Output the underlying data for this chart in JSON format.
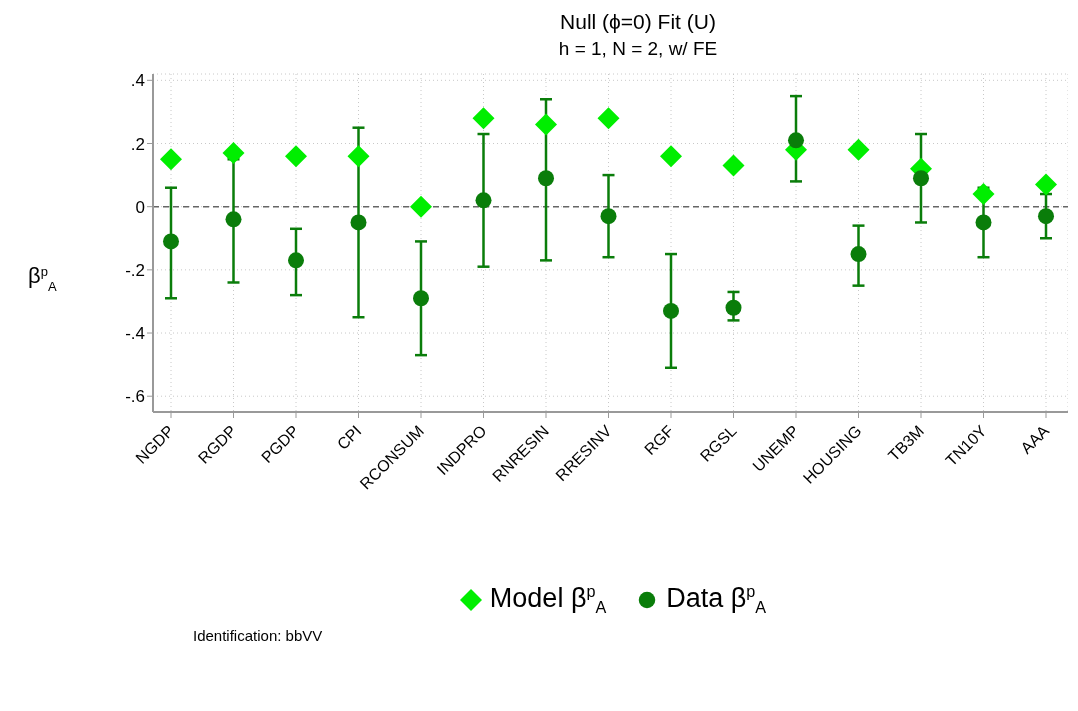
{
  "chart_data": {
    "type": "scatter",
    "title": "Null (ϕ=0) Fit (U)",
    "subtitle": "h = 1, N = 2, w/ FE",
    "ylabel": "β$^{p}$$_{A}$",
    "categories": [
      "NGDP",
      "RGDP",
      "PGDP",
      "CPI",
      "RCONSUM",
      "INDPRO",
      "RNRESIN",
      "RRESINV",
      "RGF",
      "RGSL",
      "UNEMP",
      "HOUSING",
      "TB3M",
      "TN10Y",
      "AAA"
    ],
    "series": [
      {
        "name": "Model β$^{p}$$_{A}$",
        "color": "#00ee00",
        "marker": "diamond",
        "values": [
          0.15,
          0.17,
          0.16,
          0.16,
          0.0,
          0.28,
          0.26,
          0.28,
          0.16,
          0.13,
          0.18,
          0.18,
          0.12,
          0.04,
          0.07
        ]
      },
      {
        "name": "Data β$^{p}$$_{A}$",
        "color": "#0a7d0a",
        "marker": "circle",
        "values": [
          -0.11,
          -0.04,
          -0.17,
          -0.05,
          -0.29,
          0.02,
          0.09,
          -0.03,
          -0.33,
          -0.32,
          0.21,
          -0.15,
          0.09,
          -0.05,
          -0.03
        ],
        "errors": [
          [
            -0.29,
            0.06
          ],
          [
            -0.24,
            0.15
          ],
          [
            -0.28,
            -0.07
          ],
          [
            -0.35,
            0.25
          ],
          [
            -0.47,
            -0.11
          ],
          [
            -0.19,
            0.23
          ],
          [
            -0.17,
            0.34
          ],
          [
            -0.16,
            0.1
          ],
          [
            -0.51,
            -0.15
          ],
          [
            -0.36,
            -0.27
          ],
          [
            0.08,
            0.35
          ],
          [
            -0.25,
            -0.06
          ],
          [
            -0.05,
            0.23
          ],
          [
            -0.16,
            0.06
          ],
          [
            -0.1,
            0.04
          ]
        ]
      }
    ],
    "ylim": [
      -0.65,
      0.42
    ],
    "yticks": [
      {
        "value": -0.6,
        "label": "-.6"
      },
      {
        "value": -0.4,
        "label": "-.4"
      },
      {
        "value": -0.2,
        "label": "-.2"
      },
      0,
      {
        "value": 0.2,
        "label": ".2"
      },
      {
        "value": 0.4,
        "label": ".4"
      }
    ],
    "ref_lines": [
      {
        "axis": "y",
        "value": 0,
        "color": "#666666",
        "line_style": "dashed"
      }
    ],
    "grid": true,
    "legend": "bottom",
    "annotations": [
      "Identification: bbVV"
    ]
  }
}
